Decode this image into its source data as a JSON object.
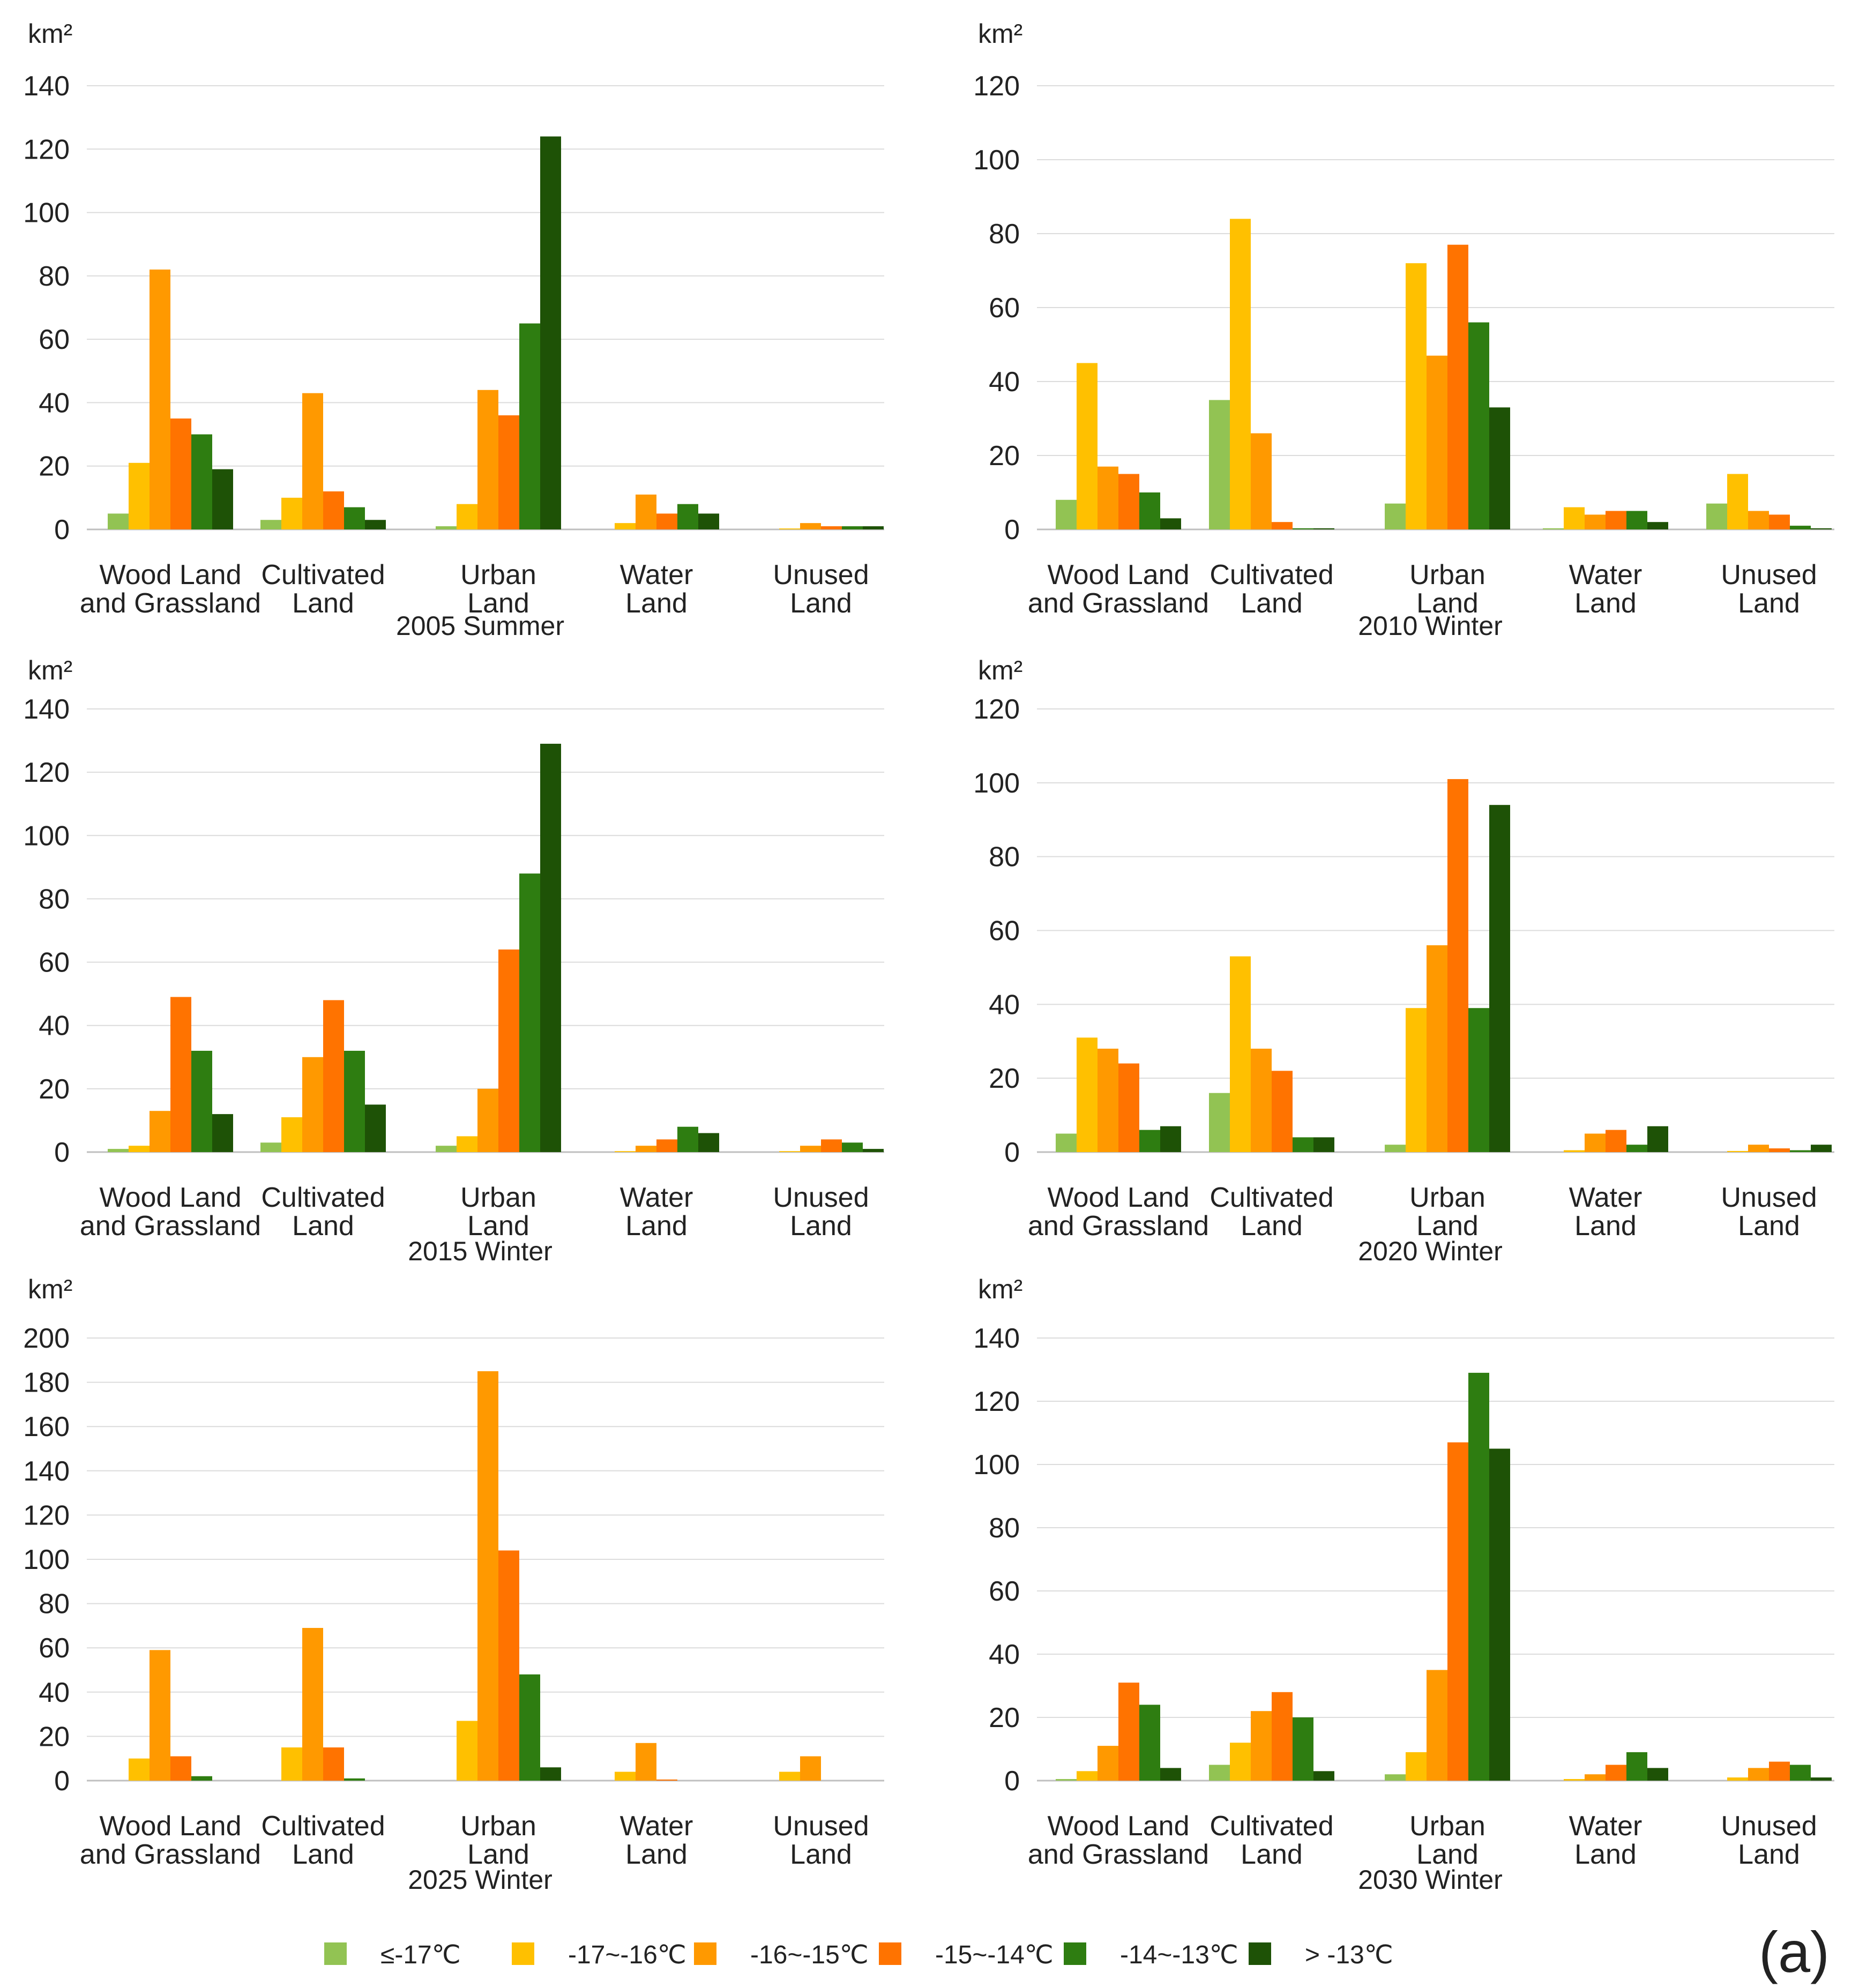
{
  "figure_label": "(a)",
  "unit": "km²",
  "categories": [
    [
      "Wood Land",
      "and Grassland"
    ],
    [
      "Cultivated",
      "Land"
    ],
    [
      "Urban",
      "Land"
    ],
    [
      "Water",
      "Land"
    ],
    [
      "Unused",
      "Land"
    ]
  ],
  "legend": [
    {
      "label": "≤-17℃",
      "color": "#92c353"
    },
    {
      "label": "-17~-16℃",
      "color": "#ffc000"
    },
    {
      "label": "-16~-15℃",
      "color": "#ff9900"
    },
    {
      "label": "-15~-14℃",
      "color": "#ff7300"
    },
    {
      "label": "-14~-13℃",
      "color": "#2e7d11"
    },
    {
      "label": "> -13℃",
      "color": "#1e5206"
    }
  ],
  "chart_data": [
    {
      "type": "bar",
      "title": "2005 Summer",
      "ylabel": "km²",
      "ylim": [
        0,
        140
      ],
      "yticks": [
        0,
        20,
        40,
        60,
        80,
        100,
        120,
        140
      ],
      "categories": [
        "Wood Land and Grassland",
        "Cultivated Land",
        "Urban Land",
        "Water Land",
        "Unused Land"
      ],
      "series": [
        {
          "name": "≤-17℃",
          "values": [
            5,
            3,
            1,
            0,
            0
          ]
        },
        {
          "name": "-17~-16℃",
          "values": [
            21,
            10,
            8,
            2,
            0.3
          ]
        },
        {
          "name": "-16~-15℃",
          "values": [
            82,
            43,
            44,
            11,
            2
          ]
        },
        {
          "name": "-15~-14℃",
          "values": [
            35,
            12,
            36,
            5,
            1
          ]
        },
        {
          "name": "-14~-13℃",
          "values": [
            30,
            7,
            65,
            8,
            1
          ]
        },
        {
          "name": "> -13℃",
          "values": [
            19,
            3,
            124,
            5,
            1
          ]
        }
      ]
    },
    {
      "type": "bar",
      "title": "2010 Winter",
      "ylabel": "km²",
      "ylim": [
        0,
        120
      ],
      "yticks": [
        0,
        20,
        40,
        60,
        80,
        100,
        120
      ],
      "categories": [
        "Wood Land and Grassland",
        "Cultivated Land",
        "Urban Land",
        "Water Land",
        "Unused Land"
      ],
      "series": [
        {
          "name": "≤-17℃",
          "values": [
            8,
            35,
            7,
            0.3,
            7
          ]
        },
        {
          "name": "-17~-16℃",
          "values": [
            45,
            84,
            72,
            6,
            15
          ]
        },
        {
          "name": "-16~-15℃",
          "values": [
            17,
            26,
            47,
            4,
            5
          ]
        },
        {
          "name": "-15~-14℃",
          "values": [
            15,
            2,
            77,
            5,
            4
          ]
        },
        {
          "name": "-14~-13℃",
          "values": [
            10,
            0.3,
            56,
            5,
            1
          ]
        },
        {
          "name": "> -13℃",
          "values": [
            3,
            0.3,
            33,
            2,
            0.3
          ]
        }
      ]
    },
    {
      "type": "bar",
      "title": "2015 Winter",
      "ylabel": "km²",
      "ylim": [
        0,
        140
      ],
      "yticks": [
        0,
        20,
        40,
        60,
        80,
        100,
        120,
        140
      ],
      "categories": [
        "Wood Land and Grassland",
        "Cultivated Land",
        "Urban Land",
        "Water Land",
        "Unused Land"
      ],
      "series": [
        {
          "name": "≤-17℃",
          "values": [
            1,
            3,
            2,
            0,
            0
          ]
        },
        {
          "name": "-17~-16℃",
          "values": [
            2,
            11,
            5,
            0.3,
            0.3
          ]
        },
        {
          "name": "-16~-15℃",
          "values": [
            13,
            30,
            20,
            2,
            2
          ]
        },
        {
          "name": "-15~-14℃",
          "values": [
            49,
            48,
            64,
            4,
            4
          ]
        },
        {
          "name": "-14~-13℃",
          "values": [
            32,
            32,
            88,
            8,
            3
          ]
        },
        {
          "name": "> -13℃",
          "values": [
            12,
            15,
            129,
            6,
            1
          ]
        }
      ]
    },
    {
      "type": "bar",
      "title": "2020 Winter",
      "ylabel": "km²",
      "ylim": [
        0,
        120
      ],
      "yticks": [
        0,
        20,
        40,
        60,
        80,
        100,
        120
      ],
      "categories": [
        "Wood Land and Grassland",
        "Cultivated Land",
        "Urban Land",
        "Water Land",
        "Unused Land"
      ],
      "series": [
        {
          "name": "≤-17℃",
          "values": [
            5,
            16,
            2,
            0,
            0
          ]
        },
        {
          "name": "-17~-16℃",
          "values": [
            31,
            53,
            39,
            0.5,
            0.3
          ]
        },
        {
          "name": "-16~-15℃",
          "values": [
            28,
            28,
            56,
            5,
            2
          ]
        },
        {
          "name": "-15~-14℃",
          "values": [
            24,
            22,
            101,
            6,
            1
          ]
        },
        {
          "name": "-14~-13℃",
          "values": [
            6,
            4,
            39,
            2,
            0.5
          ]
        },
        {
          "name": "> -13℃",
          "values": [
            7,
            4,
            94,
            7,
            2
          ]
        }
      ]
    },
    {
      "type": "bar",
      "title": "2025 Winter",
      "ylabel": "km²",
      "ylim": [
        0,
        200
      ],
      "yticks": [
        0,
        20,
        40,
        60,
        80,
        100,
        120,
        140,
        160,
        180,
        200
      ],
      "categories": [
        "Wood Land and Grassland",
        "Cultivated Land",
        "Urban Land",
        "Water Land",
        "Unused Land"
      ],
      "series": [
        {
          "name": "≤-17℃",
          "values": [
            0,
            0,
            0,
            0,
            0
          ]
        },
        {
          "name": "-17~-16℃",
          "values": [
            10,
            15,
            27,
            4,
            4
          ]
        },
        {
          "name": "-16~-15℃",
          "values": [
            59,
            69,
            185,
            17,
            11
          ]
        },
        {
          "name": "-15~-14℃",
          "values": [
            11,
            15,
            104,
            0.5,
            0
          ]
        },
        {
          "name": "-14~-13℃",
          "values": [
            2,
            1,
            48,
            0,
            0
          ]
        },
        {
          "name": "> -13℃",
          "values": [
            0,
            0,
            6,
            0,
            0
          ]
        }
      ]
    },
    {
      "type": "bar",
      "title": "2030 Winter",
      "ylabel": "km²",
      "ylim": [
        0,
        140
      ],
      "yticks": [
        0,
        20,
        40,
        60,
        80,
        100,
        120,
        140
      ],
      "categories": [
        "Wood Land and Grassland",
        "Cultivated Land",
        "Urban Land",
        "Water Land",
        "Unused Land"
      ],
      "series": [
        {
          "name": "≤-17℃",
          "values": [
            0.5,
            5,
            2,
            0,
            0
          ]
        },
        {
          "name": "-17~-16℃",
          "values": [
            3,
            12,
            9,
            0.5,
            1
          ]
        },
        {
          "name": "-16~-15℃",
          "values": [
            11,
            22,
            35,
            2,
            4
          ]
        },
        {
          "name": "-15~-14℃",
          "values": [
            31,
            28,
            107,
            5,
            6
          ]
        },
        {
          "name": "-14~-13℃",
          "values": [
            24,
            20,
            129,
            9,
            5
          ]
        },
        {
          "name": "> -13℃",
          "values": [
            4,
            3,
            105,
            4,
            1
          ]
        }
      ]
    }
  ]
}
